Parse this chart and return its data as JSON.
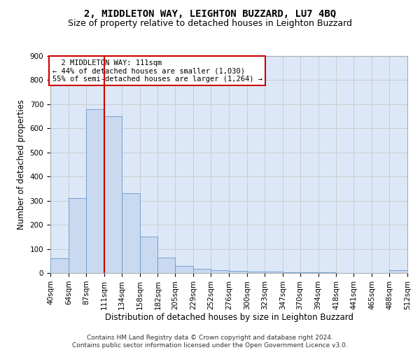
{
  "title": "2, MIDDLETON WAY, LEIGHTON BUZZARD, LU7 4BQ",
  "subtitle": "Size of property relative to detached houses in Leighton Buzzard",
  "xlabel": "Distribution of detached houses by size in Leighton Buzzard",
  "ylabel": "Number of detached properties",
  "footer1": "Contains HM Land Registry data © Crown copyright and database right 2024.",
  "footer2": "Contains public sector information licensed under the Open Government Licence v3.0.",
  "annotation_line1": "  2 MIDDLETON WAY: 111sqm",
  "annotation_line2": "← 44% of detached houses are smaller (1,030)",
  "annotation_line3": "55% of semi-detached houses are larger (1,264) →",
  "bar_edges": [
    40,
    64,
    87,
    111,
    134,
    158,
    182,
    205,
    229,
    252,
    276,
    300,
    323,
    347,
    370,
    394,
    418,
    441,
    465,
    488,
    512
  ],
  "bar_heights": [
    60,
    310,
    680,
    650,
    330,
    150,
    65,
    30,
    18,
    12,
    10,
    5,
    5,
    3,
    2,
    2,
    1,
    1,
    1,
    12,
    0
  ],
  "bar_color": "#c9d9f0",
  "bar_edge_color": "#6699cc",
  "vline_x": 111,
  "vline_color": "#cc0000",
  "ylim": [
    0,
    900
  ],
  "yticks": [
    0,
    100,
    200,
    300,
    400,
    500,
    600,
    700,
    800,
    900
  ],
  "grid_color": "#cccccc",
  "bg_color": "#dce8f8",
  "annotation_box_color": "#ffffff",
  "annotation_box_edge": "#cc0000",
  "title_fontsize": 10,
  "subtitle_fontsize": 9,
  "axis_label_fontsize": 8.5,
  "tick_fontsize": 7.5,
  "footer_fontsize": 6.5
}
